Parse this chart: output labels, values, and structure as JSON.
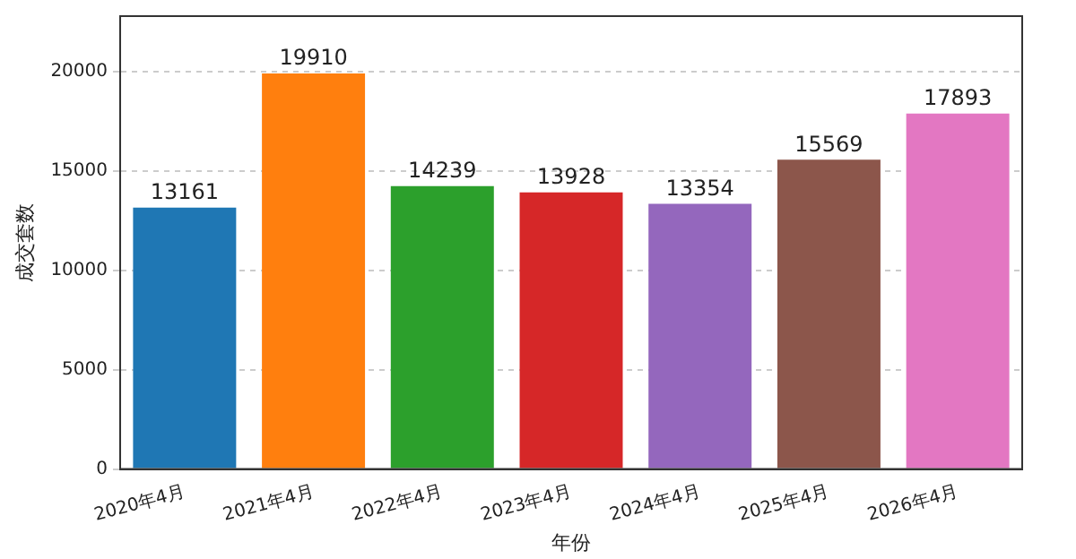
{
  "chart_data": {
    "type": "bar",
    "xlabel": "年份",
    "ylabel": "成交套数",
    "categories": [
      "2020年4月",
      "2021年4月",
      "2022年4月",
      "2023年4月",
      "2024年4月",
      "2025年4月",
      "2026年4月"
    ],
    "values": [
      13161,
      19910,
      14239,
      13928,
      13354,
      15569,
      17893
    ],
    "colors": [
      "#1f77b4",
      "#ff7f0e",
      "#2ca02c",
      "#d62728",
      "#9467bd",
      "#8c564b",
      "#e377c2"
    ],
    "ylim": [
      0,
      22800
    ],
    "yticks": [
      0,
      5000,
      10000,
      15000,
      20000
    ],
    "grid": "y",
    "data_labels": true
  }
}
